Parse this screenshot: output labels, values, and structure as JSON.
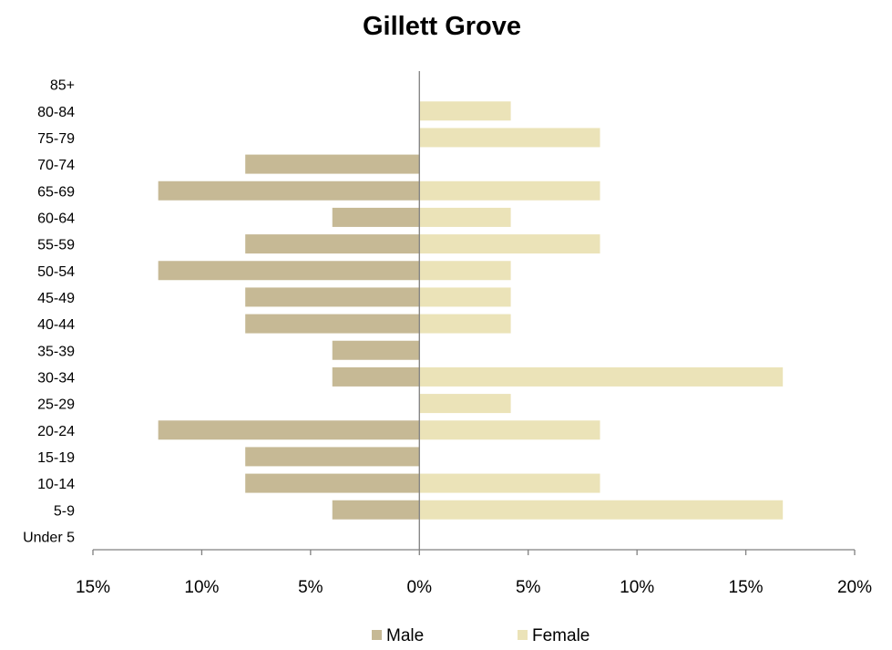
{
  "chart_data": {
    "type": "bar",
    "orientation": "horizontal",
    "title": "Gillett Grove",
    "categories": [
      "Under 5",
      "5-9",
      "10-14",
      "15-19",
      "20-24",
      "25-29",
      "30-34",
      "35-39",
      "40-44",
      "45-49",
      "50-54",
      "55-59",
      "60-64",
      "65-69",
      "70-74",
      "75-79",
      "80-84",
      "85+"
    ],
    "series": [
      {
        "name": "Male",
        "color": "#c6b995",
        "values": [
          0,
          4,
          8,
          8,
          12,
          0,
          4,
          4,
          8,
          8,
          12,
          8,
          4,
          12,
          8,
          0,
          0,
          0
        ]
      },
      {
        "name": "Female",
        "color": "#ebe3b8",
        "values": [
          0,
          16.7,
          8.3,
          0,
          8.3,
          4.2,
          16.7,
          0,
          4.2,
          4.2,
          4.2,
          8.3,
          4.2,
          8.3,
          0,
          8.3,
          4.2,
          0
        ]
      }
    ],
    "xlim": [
      -15,
      20
    ],
    "xticks": [
      -15,
      -10,
      -5,
      0,
      5,
      10,
      15,
      20
    ],
    "xtick_labels": [
      "15%",
      "10%",
      "5%",
      "0%",
      "5%",
      "10%",
      "15%",
      "20%"
    ],
    "legend_position": "bottom",
    "grid": false
  }
}
